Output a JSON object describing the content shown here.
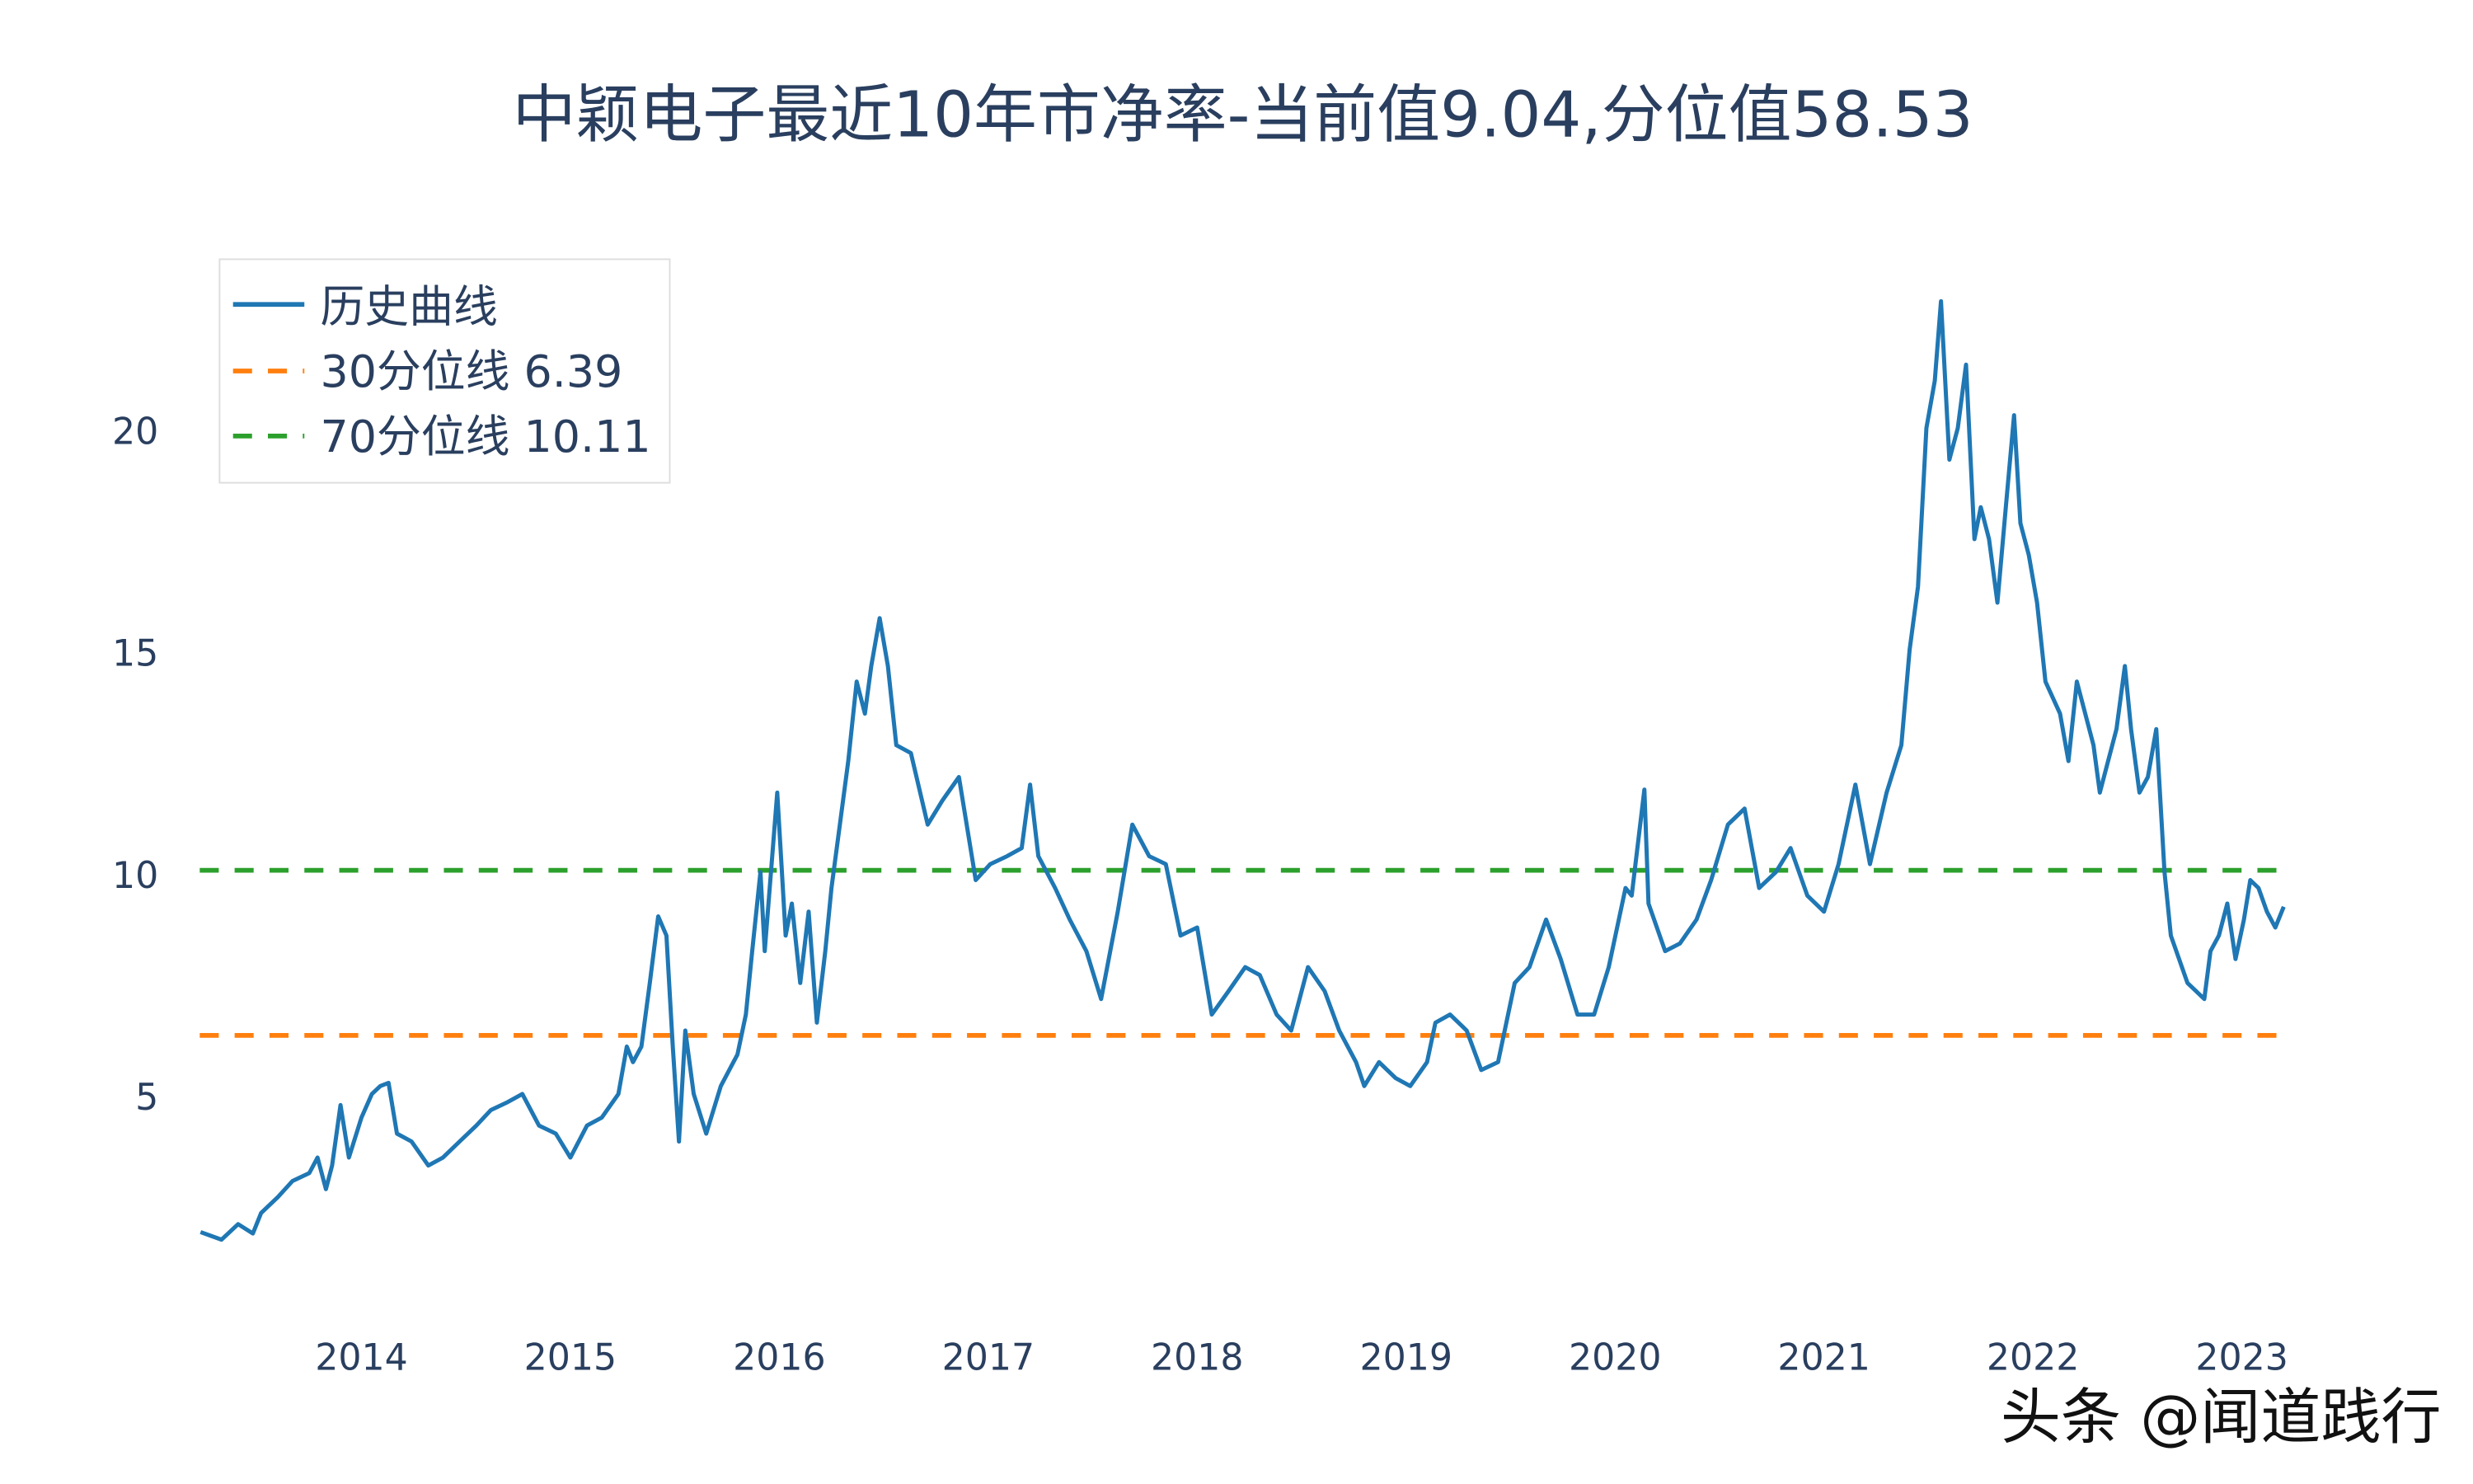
{
  "chart_data": {
    "type": "line",
    "title": "中颖电子最近10年市净率-当前值9.04,分位值58.53",
    "xlabel": "",
    "ylabel": "",
    "x_ticks": [
      "2014",
      "2015",
      "2016",
      "2017",
      "2018",
      "2019",
      "2020",
      "2021",
      "2022",
      "2023"
    ],
    "y_ticks": [
      "5",
      "10",
      "15",
      "20"
    ],
    "xlim": [
      2013.2,
      2023.25
    ],
    "ylim": [
      1.2,
      23.5
    ],
    "grid": false,
    "legend_position": "top-left",
    "series": [
      {
        "name": "历史曲线",
        "color": "#1f77b4",
        "style": "solid",
        "x": [
          2013.23,
          2013.33,
          2013.41,
          2013.48,
          2013.52,
          2013.6,
          2013.67,
          2013.75,
          2013.79,
          2013.83,
          2013.86,
          2013.9,
          2013.94,
          2014.0,
          2014.05,
          2014.09,
          2014.13,
          2014.17,
          2014.24,
          2014.32,
          2014.39,
          2014.47,
          2014.55,
          2014.62,
          2014.7,
          2014.77,
          2014.85,
          2014.93,
          2015.0,
          2015.08,
          2015.15,
          2015.23,
          2015.27,
          2015.3,
          2015.34,
          2015.38,
          2015.42,
          2015.46,
          2015.49,
          2015.52,
          2015.55,
          2015.59,
          2015.65,
          2015.72,
          2015.8,
          2015.84,
          2015.87,
          2015.91,
          2015.93,
          2015.99,
          2016.03,
          2016.06,
          2016.1,
          2016.14,
          2016.18,
          2016.22,
          2016.25,
          2016.29,
          2016.33,
          2016.37,
          2016.41,
          2016.44,
          2016.48,
          2016.52,
          2016.56,
          2016.63,
          2016.71,
          2016.78,
          2016.86,
          2016.94,
          2017.01,
          2017.09,
          2017.16,
          2017.2,
          2017.24,
          2017.32,
          2017.39,
          2017.47,
          2017.54,
          2017.62,
          2017.69,
          2017.77,
          2017.85,
          2017.92,
          2018.0,
          2018.07,
          2018.15,
          2018.23,
          2018.3,
          2018.38,
          2018.45,
          2018.53,
          2018.61,
          2018.68,
          2018.76,
          2018.8,
          2018.87,
          2018.95,
          2019.02,
          2019.1,
          2019.14,
          2019.21,
          2019.29,
          2019.36,
          2019.44,
          2019.52,
          2019.59,
          2019.67,
          2019.74,
          2019.82,
          2019.9,
          2019.97,
          2020.05,
          2020.08,
          2020.14,
          2020.16,
          2020.24,
          2020.31,
          2020.39,
          2020.46,
          2020.54,
          2020.62,
          2020.69,
          2020.77,
          2020.84,
          2020.92,
          2021.0,
          2021.07,
          2021.15,
          2021.22,
          2021.3,
          2021.37,
          2021.41,
          2021.45,
          2021.49,
          2021.53,
          2021.56,
          2021.6,
          2021.64,
          2021.68,
          2021.72,
          2021.75,
          2021.79,
          2021.83,
          2021.87,
          2021.91,
          2021.94,
          2021.98,
          2022.02,
          2022.06,
          2022.13,
          2022.17,
          2022.21,
          2022.29,
          2022.32,
          2022.4,
          2022.44,
          2022.47,
          2022.51,
          2022.55,
          2022.59,
          2022.63,
          2022.66,
          2022.74,
          2022.82,
          2022.85,
          2022.89,
          2022.93,
          2022.97,
          2023.01,
          2023.04,
          2023.08,
          2023.12,
          2023.16,
          2023.2
        ],
        "y": [
          1.96,
          1.79,
          2.14,
          1.93,
          2.39,
          2.75,
          3.11,
          3.29,
          3.64,
          2.93,
          3.46,
          4.82,
          3.64,
          4.54,
          5.07,
          5.25,
          5.32,
          4.18,
          4.0,
          3.46,
          3.64,
          4.0,
          4.36,
          4.71,
          4.89,
          5.07,
          4.36,
          4.18,
          3.64,
          4.36,
          4.54,
          5.07,
          6.14,
          5.79,
          6.14,
          7.57,
          9.07,
          8.64,
          6.14,
          4.0,
          6.5,
          5.07,
          4.18,
          5.25,
          5.96,
          6.86,
          8.29,
          10.07,
          8.29,
          11.86,
          8.64,
          9.36,
          7.57,
          9.18,
          6.68,
          8.29,
          9.71,
          11.14,
          12.57,
          14.36,
          13.64,
          14.71,
          15.79,
          14.71,
          12.93,
          12.75,
          11.14,
          11.68,
          12.21,
          9.89,
          10.25,
          10.43,
          10.61,
          12.04,
          10.43,
          9.71,
          9.0,
          8.29,
          7.21,
          9.18,
          11.14,
          10.43,
          10.25,
          8.64,
          8.82,
          6.86,
          7.39,
          7.93,
          7.75,
          6.86,
          6.5,
          7.93,
          7.39,
          6.5,
          5.79,
          5.25,
          5.79,
          5.43,
          5.25,
          5.79,
          6.68,
          6.86,
          6.5,
          5.61,
          5.79,
          7.57,
          7.93,
          9.0,
          8.11,
          6.86,
          6.86,
          7.93,
          9.71,
          9.54,
          11.93,
          9.36,
          8.29,
          8.46,
          9.0,
          9.89,
          11.14,
          11.5,
          9.71,
          10.07,
          10.61,
          9.54,
          9.18,
          10.25,
          12.04,
          10.25,
          11.86,
          12.93,
          15.07,
          16.5,
          20.07,
          21.14,
          22.93,
          19.36,
          20.07,
          21.5,
          17.57,
          18.29,
          17.57,
          16.14,
          18.29,
          20.36,
          17.93,
          17.21,
          16.14,
          14.36,
          13.64,
          12.57,
          14.36,
          12.93,
          11.86,
          13.29,
          14.71,
          13.29,
          11.86,
          12.21,
          13.29,
          10.07,
          8.64,
          7.57,
          7.21,
          8.29,
          8.64,
          9.36,
          8.11,
          9.0,
          9.89,
          9.71,
          9.18,
          8.82,
          9.29
        ]
      },
      {
        "name": "30分位线 6.39",
        "color": "#ff7f0e",
        "style": "dash",
        "value": 6.39
      },
      {
        "name": "70分位线 10.11",
        "color": "#2ca02c",
        "style": "dash",
        "value": 10.11
      }
    ]
  },
  "watermark": "头条 @闻道践行"
}
